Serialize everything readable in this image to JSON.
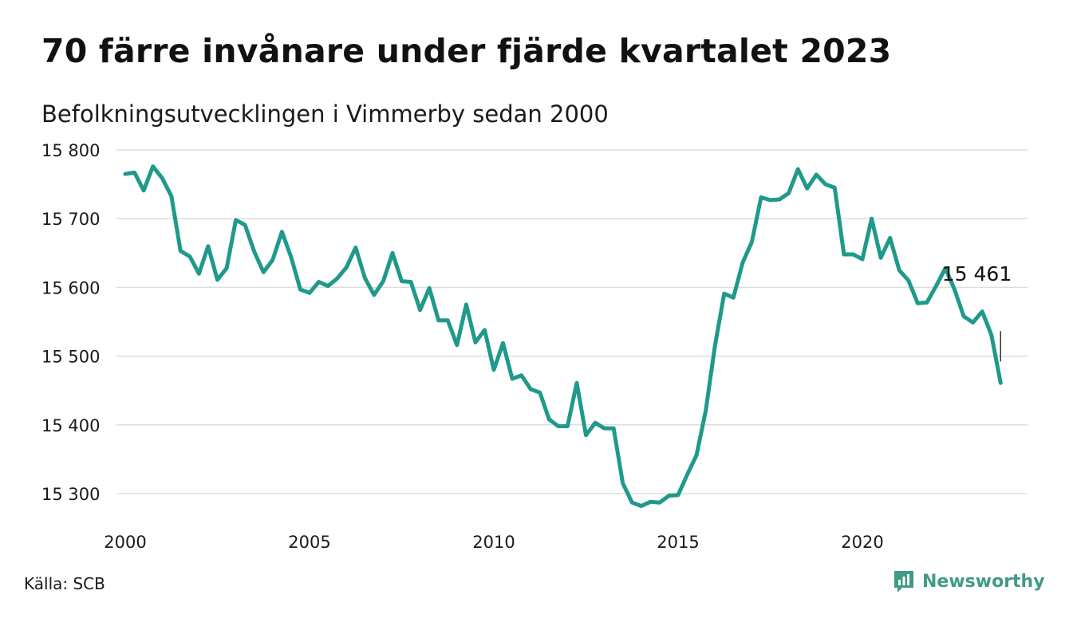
{
  "header": {
    "title": "70 färre invånare under fjärde kvartalet 2023",
    "subtitle": "Befolkningsutvecklingen i Vimmerby sedan 2000"
  },
  "footer": {
    "source": "Källa: SCB",
    "brand": "Newsworthy",
    "brand_icon": "bar-chart-speech-icon",
    "brand_color": "#3f9a86"
  },
  "chart_data": {
    "type": "line",
    "line_color": "#1f9a8a",
    "grid": true,
    "x_tick_labels": [
      "2000",
      "2005",
      "2010",
      "2015",
      "2020"
    ],
    "y_tick_labels": [
      "15 800",
      "15 700",
      "15 600",
      "15 500",
      "15 400",
      "15 300"
    ],
    "xlim": [
      2000,
      2024
    ],
    "ylim": [
      15300,
      15800
    ],
    "annotation": {
      "label": "15 461",
      "x": 2023.75,
      "y": 15461
    },
    "x": [
      2000.0,
      2000.25,
      2000.5,
      2000.75,
      2001.0,
      2001.25,
      2001.5,
      2001.75,
      2002.0,
      2002.25,
      2002.5,
      2002.75,
      2003.0,
      2003.25,
      2003.5,
      2003.75,
      2004.0,
      2004.25,
      2004.5,
      2004.75,
      2005.0,
      2005.25,
      2005.5,
      2005.75,
      2006.0,
      2006.25,
      2006.5,
      2006.75,
      2007.0,
      2007.25,
      2007.5,
      2007.75,
      2008.0,
      2008.25,
      2008.5,
      2008.75,
      2009.0,
      2009.25,
      2009.5,
      2009.75,
      2010.0,
      2010.25,
      2010.5,
      2010.75,
      2011.0,
      2011.25,
      2011.5,
      2011.75,
      2012.0,
      2012.25,
      2012.5,
      2012.75,
      2013.0,
      2013.25,
      2013.5,
      2013.75,
      2014.0,
      2014.25,
      2014.5,
      2014.75,
      2015.0,
      2015.25,
      2015.5,
      2015.75,
      2016.0,
      2016.25,
      2016.5,
      2016.75,
      2017.0,
      2017.25,
      2017.5,
      2017.75,
      2018.0,
      2018.25,
      2018.5,
      2018.75,
      2019.0,
      2019.25,
      2019.5,
      2019.75,
      2020.0,
      2020.25,
      2020.5,
      2020.75,
      2021.0,
      2021.25,
      2021.5,
      2021.75,
      2022.0,
      2022.25,
      2022.5,
      2022.75,
      2023.0,
      2023.25,
      2023.5,
      2023.75
    ],
    "series": [
      {
        "values": [
          15765,
          15767,
          15741,
          15776,
          15759,
          15733,
          15653,
          15645,
          15620,
          15660,
          15611,
          15628,
          15698,
          15691,
          15652,
          15622,
          15640,
          15681,
          15644,
          15597,
          15592,
          15608,
          15602,
          15613,
          15629,
          15658,
          15614,
          15589,
          15609,
          15650,
          15609,
          15608,
          15567,
          15599,
          15552,
          15552,
          15516,
          15575,
          15520,
          15538,
          15480,
          15519,
          15467,
          15472,
          15452,
          15447,
          15408,
          15398,
          15398,
          15461,
          15385,
          15403,
          15395,
          15395,
          15315,
          15287,
          15282,
          15288,
          15287,
          15297,
          15298,
          15328,
          15356,
          15421,
          15515,
          15591,
          15585,
          15636,
          15666,
          15731,
          15727,
          15728,
          15737,
          15772,
          15744,
          15764,
          15750,
          15745,
          15648,
          15648,
          15641,
          15700,
          15643,
          15672,
          15625,
          15610,
          15577,
          15578,
          15602,
          15628,
          15597,
          15558,
          15549,
          15565,
          15531,
          15461
        ]
      }
    ]
  }
}
